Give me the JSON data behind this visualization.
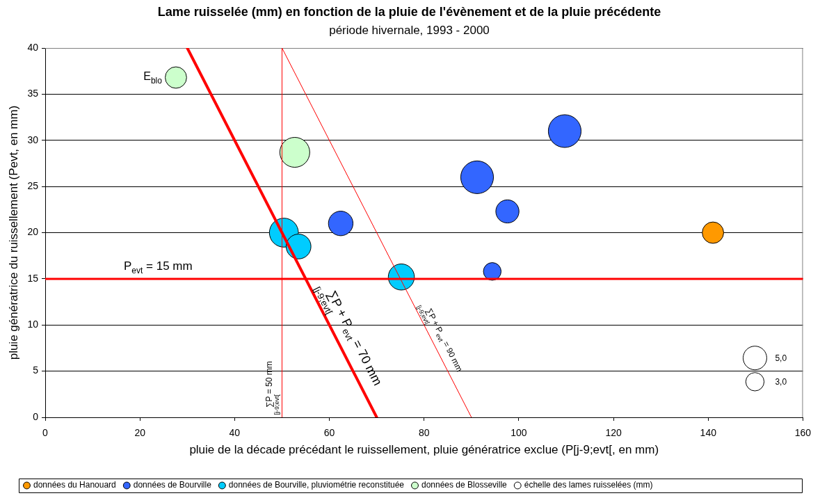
{
  "chart_data": {
    "type": "bubble",
    "title": "Lame ruisselée (mm) en fonction de la pluie de l'évènement et de la pluie précédente",
    "subtitle": "période hivernale, 1993 - 2000",
    "xlabel": "pluie de la décade précédant le ruissellement, pluie génératrice exclue (P[j-9;evt[, en mm)",
    "ylabel": "pluie génératrice du ruissellement (Pevt, en mm)",
    "xlim": [
      0,
      160
    ],
    "xticks": [
      0,
      20,
      40,
      60,
      80,
      100,
      120,
      140,
      160
    ],
    "ylim": [
      0,
      40
    ],
    "yticks": [
      0,
      5,
      10,
      15,
      20,
      25,
      30,
      35,
      40
    ],
    "grid": "y",
    "legend": "bottom",
    "legend_title": "échelle des lames ruisselées (mm)",
    "size_legend": [
      {
        "value": 5,
        "label": "5,0"
      },
      {
        "value": 3,
        "label": "3,0"
      }
    ],
    "series": [
      {
        "name": "données du Hanouard",
        "color": "#ff9900",
        "x": [
          141
        ],
        "values": [
          20
        ],
        "sizes": [
          4.1
        ]
      },
      {
        "name": "données de Bourville",
        "color": "#3366ff",
        "x": [
          62.4,
          91.2,
          94.4,
          97.6,
          109.7
        ],
        "values": [
          21,
          26,
          15.8,
          22.3,
          31
        ],
        "sizes": [
          5.4,
          9.6,
          2.8,
          4.8,
          9.6
        ]
      },
      {
        "name": "données de Bourville, pluviométrie reconstituée",
        "color": "#00ccff",
        "x": [
          50.4,
          53.5,
          75.2
        ],
        "values": [
          20,
          18.5,
          15.2
        ],
        "sizes": [
          7.5,
          5.5,
          6.1
        ]
      },
      {
        "name": "données de Blosseville",
        "color": "#ccffcc",
        "x": [
          27.6,
          52.7
        ],
        "values": [
          36.8,
          28.7
        ],
        "sizes": [
          4.1,
          8
        ]
      },
      {
        "type": "line",
        "name": "∑$_{[j-9;evt[}$P + P$_{evt}$ = 70 mm",
        "color": "#ff0000",
        "x": [
          30,
          70
        ],
        "values": [
          40,
          0
        ]
      },
      {
        "type": "line",
        "name": "∑$_{[j-9;evt[}$P + P$_{evt}$ = 90 mm",
        "color": "#ff0000",
        "x": [
          50,
          90
        ],
        "values": [
          40,
          0
        ]
      }
    ],
    "ref_lines": [
      {
        "axis": "y",
        "value": 15,
        "label": "P$_{evt}$ = 15 mm",
        "color": "#ff0000"
      },
      {
        "axis": "x",
        "value": 50,
        "label": "∑$_{[j-9;evt[}$P = 50 mm",
        "color": "#ff0000"
      }
    ],
    "annotations": [
      {
        "text": "E$_{blo}$",
        "x": 27.6,
        "y": 36.8
      }
    ]
  }
}
